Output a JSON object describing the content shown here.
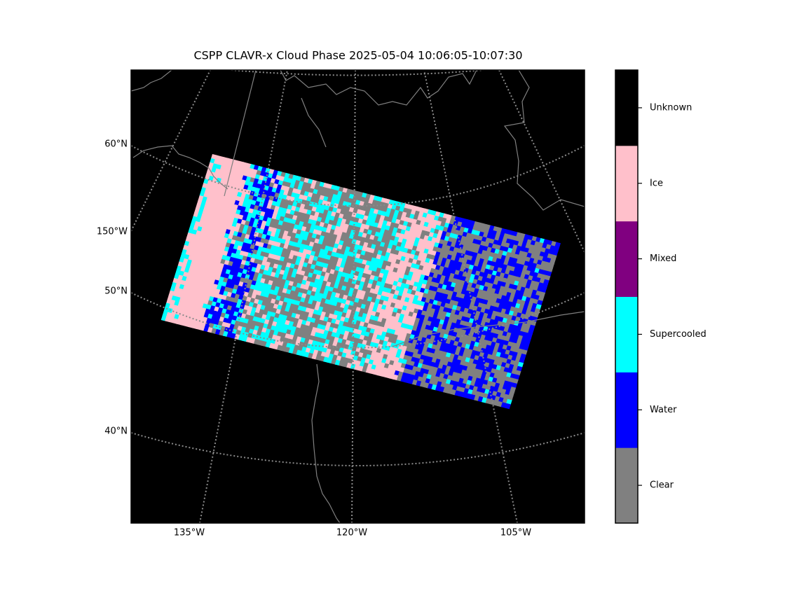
{
  "title": "CSPP CLAVR-x Cloud Phase 2025-05-04 10:06:05-10:07:30",
  "map": {
    "left_labels": [
      "60°N",
      "150°W",
      "50°N",
      "40°N"
    ],
    "bottom_labels": [
      "135°W",
      "120°W",
      "105°W"
    ]
  },
  "colorbar": {
    "classes": [
      {
        "label": "Clear",
        "color": "#808080"
      },
      {
        "label": "Water",
        "color": "#0000ff"
      },
      {
        "label": "Supercooled",
        "color": "#00ffff"
      },
      {
        "label": "Mixed",
        "color": "#800080"
      },
      {
        "label": "Ice",
        "color": "#ffc0cb"
      },
      {
        "label": "Unknown",
        "color": "#000000"
      }
    ]
  }
}
